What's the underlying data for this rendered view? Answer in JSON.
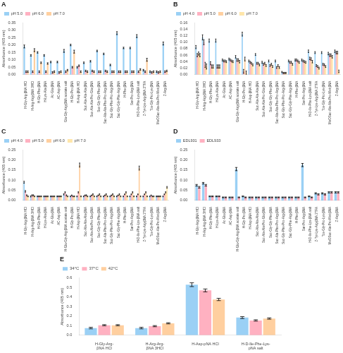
{
  "chart_data": [
    {
      "type": "bar",
      "title": "A",
      "y_label": "Absorbance (405 nm)",
      "categories": [
        "H-Gly-Arg-βNA HCl",
        "H-Arg-Arg-βNA 3HCl",
        "H-Gly-Phe-βNA",
        "H-Lys-Ala-βNA",
        "Ac-Glu-βNA",
        "AC-Asp-βNA",
        "Glu-Gly-Arg-βNA acetate salt",
        "H-Gly-Pro-βNA",
        "H-Asp-βNA HCl",
        "Suc-Ala-Ala-Ala-βNA",
        "Suc-Ala-Ala-Pro-Glu-βNA",
        "Suc-Gly-Gly-Phe-βNA",
        "Suc-Ala-Ala-Phe-Pro-Arg-βNA",
        "Suc-Gly-Phe-Pro-Arg-βNA",
        "Suc-Gly-Gly-Phe-Arg-βNA",
        "H-Phe-βNA",
        "Sar-Pro-Arg-βNA",
        "H-D-Ile-Phe-Lys-βNA salt",
        "Z-Tyr-Lys-Arg-βNA 2TFA",
        "Tos-Gly-Pro-Lys-βNA",
        "MeOSuc-Ala-Ala-Pro-Met-βNA",
        "Z-Arg-βNA"
      ],
      "series": [
        {
          "name": "pH 5.0",
          "values": [
            0.19,
            0.13,
            0.15,
            0.13,
            0.085,
            0.085,
            0.16,
            0.2,
            0.05,
            0.08,
            0.09,
            0.16,
            0.14,
            0.065,
            0.28,
            0.18,
            0.18,
            0.26,
            0.03,
            0.02,
            0.02,
            0.21
          ],
          "errors": [
            0.01,
            0.005,
            0.005,
            0.005,
            0.005,
            0.005,
            0.01,
            0.005,
            0.005,
            0.005,
            0.005,
            0.005,
            0.005,
            0.005,
            0.01,
            0.005,
            0.005,
            0.01,
            0.005,
            0.005,
            0.005,
            0.01
          ]
        },
        {
          "name": "pH 6.0",
          "values": [
            0.02,
            0.02,
            0.02,
            0.02,
            0.015,
            0.015,
            0.02,
            0.05,
            0.06,
            0.025,
            0.025,
            0.02,
            0.025,
            0.02,
            0.02,
            0.02,
            0.02,
            0.02,
            0.02,
            0.015,
            0.015,
            0.02
          ],
          "errors": [
            0.005,
            0.005,
            0.005,
            0.005,
            0.005,
            0.005,
            0.005,
            0.005,
            0.005,
            0.005,
            0.005,
            0.005,
            0.005,
            0.005,
            0.005,
            0.005,
            0.005,
            0.005,
            0.005,
            0.005,
            0.005,
            0.005
          ]
        },
        {
          "name": "pH 7.0",
          "values": [
            0.02,
            0.165,
            0.08,
            0.075,
            0.02,
            0.02,
            0.03,
            0.155,
            0.02,
            0.02,
            0.02,
            0.02,
            0.02,
            0.02,
            0.02,
            0.02,
            0.02,
            0.035,
            0.1,
            0.02,
            0.02,
            0.025
          ],
          "errors": [
            0.005,
            0.01,
            0.005,
            0.005,
            0.005,
            0.005,
            0.005,
            0.01,
            0.005,
            0.005,
            0.005,
            0.005,
            0.005,
            0.005,
            0.005,
            0.005,
            0.005,
            0.005,
            0.01,
            0.005,
            0.005,
            0.005
          ]
        }
      ],
      "ylim": [
        0,
        0.35
      ],
      "yticks": [
        {
          "value": 0,
          "label": "0.00"
        },
        0.05,
        {
          "value": 0.1,
          "label": "0.10"
        },
        0.15,
        {
          "value": 0.2,
          "label": "0.20"
        },
        0.25,
        {
          "value": 0.3,
          "label": "0.30"
        },
        0.35
      ],
      "grid": false,
      "legend": "upper left"
    },
    {
      "type": "bar",
      "title": "B",
      "y_label": "Absorbance (405 nm)",
      "categories": [
        "H-Gly-Arg-βNA HCl",
        "H-Arg-Arg-βNA 3HCl",
        "H-Gly-Phe-βNA",
        "H-Lys-Ala-βNA",
        "Ac-Glu-βNA",
        "AC-Asp-βNA",
        "Glu-Gly-Arg-βNA acetate salt",
        "H-Gly-Pro-βNA",
        "H-Asp-βNA HCl",
        "Suc-Ala-Ala-Ala-βNA",
        "Suc-Ala-Ala-Pro-Glu-βNA",
        "Suc-Gly-Gly-Phe-βNA",
        "Suc-Ala-Ala-Phe-Pro-Arg-βNA",
        "Suc-Gly-Phe-Pro-Arg-βNA",
        "Suc-Gly-Gly-Phe-Arg-βNA",
        "H-Phe-βNA",
        "Sar-Pro-Arg-βNA",
        "H-D-Ile-Phe-Lys-βNA salt",
        "Z-Tyr-Lys-Arg-βNA 2TFA",
        "Tos-Gly-Pro-Lys-βNA",
        "MeOSuc-Ala-Ala-Pro-Met-βNA",
        "Z-Arg-βNA"
      ],
      "series": [
        {
          "name": "pH 4.0",
          "values": [
            0.085,
            0.115,
            0.105,
            0.105,
            0.045,
            0.048,
            0.055,
            0.125,
            0.042,
            0.062,
            0.038,
            0.042,
            0.042,
            0.008,
            0.042,
            0.045,
            0.045,
            0.072,
            0.068,
            0.068,
            0.065,
            0.072
          ],
          "errors": [
            0.005,
            0.008,
            0.005,
            0.005,
            0.003,
            0.003,
            0.004,
            0.006,
            0.003,
            0.003,
            0.003,
            0.003,
            0.003,
            0.002,
            0.003,
            0.003,
            0.003,
            0.004,
            0.003,
            0.003,
            0.004,
            0.004
          ]
        },
        {
          "name": "pH 5.0",
          "values": [
            0.06,
            0.1,
            0.035,
            0.025,
            0.042,
            0.045,
            0.045,
            0.01,
            0.038,
            0.035,
            0.032,
            0.028,
            0.022,
            0.005,
            0.038,
            0.045,
            0.042,
            0.05,
            0.028,
            0.032,
            0.06,
            0.068
          ],
          "errors": [
            0.005,
            0.008,
            0.005,
            0.005,
            0.003,
            0.003,
            0.004,
            0.006,
            0.003,
            0.003,
            0.003,
            0.003,
            0.003,
            0.002,
            0.003,
            0.003,
            0.003,
            0.004,
            0.003,
            0.003,
            0.004,
            0.004
          ]
        },
        {
          "name": "pH 6.0",
          "values": [
            0.065,
            0.03,
            0.025,
            0.025,
            0.042,
            0.042,
            0.045,
            0.048,
            0.035,
            0.035,
            0.035,
            0.032,
            0.028,
            0.005,
            0.038,
            0.042,
            0.04,
            0.048,
            0.025,
            0.03,
            0.06,
            0.068
          ],
          "errors": [
            0.005,
            0.008,
            0.005,
            0.005,
            0.003,
            0.003,
            0.004,
            0.006,
            0.003,
            0.003,
            0.003,
            0.003,
            0.003,
            0.002,
            0.003,
            0.003,
            0.003,
            0.004,
            0.003,
            0.003,
            0.004,
            0.004
          ]
        },
        {
          "name": "pH 7.0",
          "values": [
            0.06,
            0.025,
            0.025,
            0.025,
            0.04,
            0.04,
            0.04,
            0.005,
            0.03,
            0.03,
            0.028,
            0.025,
            0.022,
            0.005,
            0.032,
            0.038,
            0.038,
            0.04,
            0.02,
            0.025,
            0.055,
            0.01
          ],
          "errors": [
            0.005,
            0.008,
            0.005,
            0.005,
            0.003,
            0.003,
            0.004,
            0.006,
            0.003,
            0.003,
            0.003,
            0.003,
            0.003,
            0.002,
            0.003,
            0.003,
            0.003,
            0.004,
            0.003,
            0.003,
            0.004,
            0.004
          ]
        }
      ],
      "ylim": [
        0,
        0.16
      ],
      "yticks": [
        {
          "value": 0,
          "label": "0.00"
        },
        0.02,
        0.04,
        0.06,
        0.08,
        {
          "value": 0.1,
          "label": "0.10"
        },
        0.12,
        0.14,
        0.16
      ],
      "grid": false,
      "legend": "upper left"
    },
    {
      "type": "bar",
      "title": "C",
      "y_label": "Absorbance (405 nm)",
      "categories": [
        "H-Gly-Arg-βNA HCl",
        "H-Arg-Arg-βNA 3HCl",
        "H-Gly-Phe-βNA",
        "H-Lys-Ala-βNA",
        "Ac-Glu-βNA",
        "AC-Asp-βNA",
        "H-Glu-Gly-Arg-βNA acetate salt",
        "H-Gly-Pro-βNA",
        "H-Asp-βNA HCl",
        "Suc-Ala-Ala-Ala-βNA",
        "Suc-Ala-Ala-Pro-Glu-βNA",
        "Suc-Gly-Gly-Phe-βNA",
        "Suc-Ala-Phe-Pro-Arg-βNA",
        "Suc-Gly-Phe-Pro-Arg-βNA",
        "Suc-Gly-Phe-Arg-βNA",
        "H-Phe-βNA",
        "Sar-Pro-Arg-βNA",
        "H-D-Ile-Phe-Lys-βNA salt",
        "Z-Tyr-Lys-Arg-βNA 2TFA",
        "Tos-Gly-Pro-Lys-βNA",
        "MeOSuc-Ala-Pro-Met-βNA",
        "Z-Arg-βNA"
      ],
      "series": [
        {
          "name": "pH 4.0",
          "values": [
            0.09,
            0.02,
            0.02,
            0.02,
            0.02,
            0.02,
            0.03,
            0.02,
            0.02,
            0.02,
            0.02,
            0.02,
            0.02,
            0.02,
            0.02,
            0.02,
            0.02,
            0.02,
            0.02,
            0.02,
            0.02,
            0.02
          ],
          "errors": [
            0.005,
            0.003,
            0.002,
            0.002,
            0.002,
            0.002,
            0.003,
            0.002,
            0.002,
            0.002,
            0.002,
            0.002,
            0.002,
            0.002,
            0.002,
            0.002,
            0.002,
            0.002,
            0.002,
            0.002,
            0.002,
            0.002
          ]
        },
        {
          "name": "pH 5.0",
          "values": [
            0.045,
            0.025,
            0.02,
            0.02,
            0.02,
            0.02,
            0.04,
            0.025,
            0.04,
            0.025,
            0.025,
            0.025,
            0.025,
            0.025,
            0.025,
            0.03,
            0.03,
            0.03,
            0.03,
            0.025,
            0.02,
            0.03
          ],
          "errors": [
            0.004,
            0.003,
            0.002,
            0.002,
            0.002,
            0.002,
            0.003,
            0.002,
            0.003,
            0.002,
            0.002,
            0.002,
            0.002,
            0.002,
            0.002,
            0.002,
            0.002,
            0.002,
            0.002,
            0.002,
            0.002,
            0.002
          ]
        },
        {
          "name": "pH 6.0",
          "values": [
            0.025,
            0.025,
            0.02,
            0.02,
            0.02,
            0.02,
            0.025,
            0.02,
            0.175,
            0.025,
            0.03,
            0.03,
            0.03,
            0.03,
            0.03,
            0.04,
            0.04,
            0.16,
            0.04,
            0.02,
            0.02,
            0.04
          ],
          "errors": [
            0.003,
            0.003,
            0.002,
            0.002,
            0.002,
            0.002,
            0.003,
            0.002,
            0.01,
            0.003,
            0.003,
            0.003,
            0.003,
            0.003,
            0.003,
            0.003,
            0.003,
            0.01,
            0.003,
            0.002,
            0.002,
            0.003
          ]
        },
        {
          "name": "pH 7.0",
          "values": [
            0.02,
            0.02,
            0.02,
            0.02,
            0.02,
            0.02,
            0.02,
            0.02,
            0.02,
            0.02,
            0.02,
            0.02,
            0.02,
            0.02,
            0.02,
            0.02,
            0.02,
            0.02,
            0.02,
            0.02,
            0.02,
            0.065
          ],
          "errors": [
            0.002,
            0.002,
            0.002,
            0.002,
            0.002,
            0.002,
            0.002,
            0.002,
            0.002,
            0.002,
            0.002,
            0.002,
            0.002,
            0.002,
            0.002,
            0.002,
            0.002,
            0.002,
            0.002,
            0.002,
            0.002,
            0.004
          ]
        }
      ],
      "ylim": [
        0,
        0.25
      ],
      "yticks": [
        {
          "value": 0,
          "label": "0.00"
        },
        0.05,
        {
          "value": 0.1,
          "label": "0.10"
        },
        0.15,
        {
          "value": 0.2,
          "label": "0.20"
        },
        0.25
      ],
      "grid": false,
      "legend": "upper left"
    },
    {
      "type": "bar",
      "title": "D",
      "y_label": "Absorbance (405 nm)",
      "categories": [
        "H-Gly-Arg-βNA HCl",
        "H-Arg-Arg-βNA 3HCl",
        "H-Gly-Phe-βNA",
        "H-Lys-Ala-βNA",
        "Ac-Glu-βNA",
        "AC-Asp-βNA",
        "H-Glu-Gly-Arg-βNA acetate salt",
        "H-Gly-Pro-βNA",
        "H-Asp-βNA HCl",
        "Suc-Ala-Ala-Ala-βNA",
        "Suc-Ala-Ala-Pro-Glu-βNA",
        "Suc-Gly-Gly-Phe-βNA",
        "Suc-Ala-Phe-Pro-Arg-βNA",
        "Suc-Gly-Phe-Pro-Arg-βNA",
        "Suc-Gly-Phe-Arg-βNA",
        "H-Phe-βNA",
        "Sar-Pro-Arg-βNA",
        "H-D-Ile-Phe-Lys-βNA salt",
        "Z-Tyr-Lys-Arg-βNA 2TFA",
        "Tos-Gly-Pro-Lys-βNA",
        "MeOSuc-Ala-Pro-Met-βNA",
        "Z-Arg-βNA"
      ],
      "series": [
        {
          "name": "EDL931",
          "values": [
            0.075,
            0.085,
            0.02,
            0.02,
            0.015,
            0.015,
            0.155,
            0.02,
            0.015,
            0.015,
            0.015,
            0.015,
            0.015,
            0.015,
            0.015,
            0.015,
            0.175,
            0.02,
            0.035,
            0.035,
            0.04,
            0.04
          ],
          "errors": [
            0.004,
            0.004,
            0.002,
            0.002,
            0.002,
            0.002,
            0.008,
            0.002,
            0.002,
            0.002,
            0.002,
            0.002,
            0.002,
            0.002,
            0.002,
            0.002,
            0.008,
            0.002,
            0.003,
            0.003,
            0.003,
            0.003
          ]
        },
        {
          "name": "EDL933",
          "values": [
            0.065,
            0.075,
            0.02,
            0.02,
            0.015,
            0.015,
            0.015,
            0.015,
            0.015,
            0.015,
            0.015,
            0.015,
            0.015,
            0.015,
            0.015,
            0.015,
            0.015,
            0.015,
            0.03,
            0.03,
            0.04,
            0.04
          ],
          "errors": [
            0.004,
            0.004,
            0.002,
            0.002,
            0.002,
            0.002,
            0.002,
            0.002,
            0.002,
            0.002,
            0.002,
            0.002,
            0.002,
            0.002,
            0.002,
            0.002,
            0.002,
            0.002,
            0.003,
            0.003,
            0.003,
            0.003
          ]
        }
      ],
      "ylim": [
        0,
        0.25
      ],
      "yticks": [
        {
          "value": 0,
          "label": "0.00"
        },
        0.05,
        {
          "value": 0.1,
          "label": "0.10"
        },
        0.15,
        {
          "value": 0.2,
          "label": "0.20"
        },
        0.25
      ],
      "grid": false,
      "legend": "upper left"
    },
    {
      "type": "bar",
      "title": "E",
      "y_label": "Absorbance (405 nm)",
      "categories": [
        "H-Gly-Arg-\nβNA HCl",
        "H-Arg-Arg-\nβNA 3HCl",
        "H-Asp-pNA HCl",
        "H-D-Ile-Phe-Lys-\npNA salt"
      ],
      "series": [
        {
          "name": "34°C",
          "values": [
            0.075,
            0.075,
            0.53,
            0.185
          ],
          "errors": [
            0.008,
            0.008,
            0.02,
            0.01
          ]
        },
        {
          "name": "37°C",
          "values": [
            0.105,
            0.095,
            0.47,
            0.155
          ],
          "errors": [
            0.006,
            0.006,
            0.015,
            0.007
          ]
        },
        {
          "name": "42°C",
          "values": [
            0.105,
            0.125,
            0.375,
            0.175
          ],
          "errors": [
            0.006,
            0.006,
            0.012,
            0.007
          ]
        }
      ],
      "ylim": [
        0,
        0.6
      ],
      "yticks": [
        {
          "value": 0,
          "label": "0.0"
        },
        0.1,
        0.2,
        0.3,
        0.4,
        0.5,
        0.6
      ],
      "grid": false,
      "legend": "upper left"
    }
  ]
}
